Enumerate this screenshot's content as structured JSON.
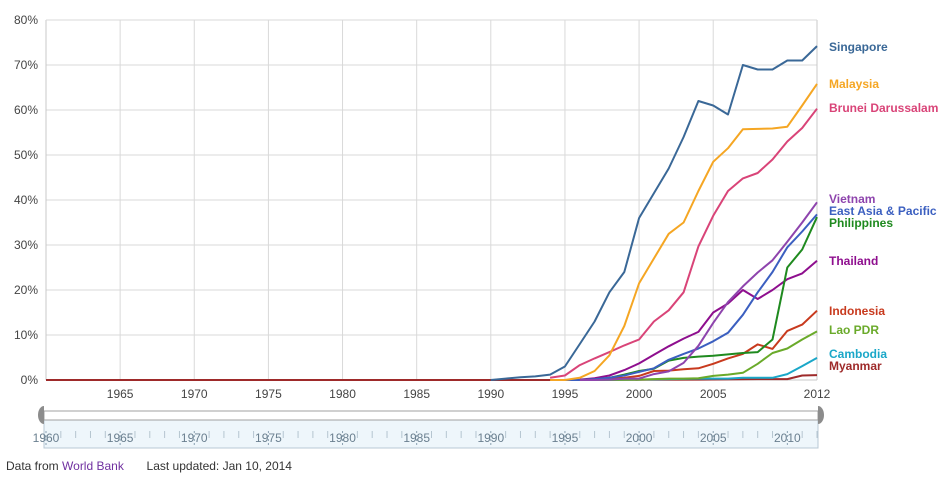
{
  "chart_data": {
    "type": "line",
    "title": "",
    "xlabel": "",
    "ylabel": "",
    "ylim": [
      0,
      80
    ],
    "xlim": [
      1960,
      2012
    ],
    "y_ticks": [
      "0%",
      "10%",
      "20%",
      "30%",
      "40%",
      "50%",
      "60%",
      "70%",
      "80%"
    ],
    "x_ticks": [
      "1965",
      "1970",
      "1975",
      "1980",
      "1985",
      "1990",
      "1995",
      "2000",
      "2005",
      "2012"
    ],
    "grid": true,
    "legend": "right, labels at line ends",
    "series": [
      {
        "name": "Singapore",
        "color": "#3a6897",
        "x": [
          1990,
          1991,
          1992,
          1993,
          1994,
          1995,
          1996,
          1997,
          1998,
          1999,
          2000,
          2001,
          2002,
          2003,
          2004,
          2005,
          2006,
          2007,
          2008,
          2009,
          2010,
          2011,
          2012
        ],
        "y": [
          0,
          0.3,
          0.6,
          0.8,
          1.2,
          3,
          8,
          13,
          19.5,
          24,
          36,
          41.5,
          47,
          54,
          62,
          61,
          59,
          70,
          69,
          69,
          71,
          71,
          74.2
        ]
      },
      {
        "name": "Malaysia",
        "color": "#f5a623",
        "x": [
          1994,
          1995,
          1996,
          1997,
          1998,
          1999,
          2000,
          2001,
          2002,
          2003,
          2004,
          2005,
          2006,
          2007,
          2008,
          2009,
          2010,
          2011,
          2012
        ],
        "y": [
          0,
          0,
          0.5,
          2,
          5.5,
          12,
          21.5,
          27,
          32.5,
          35,
          42,
          48.5,
          51.5,
          55.7,
          55.8,
          55.9,
          56.3,
          61,
          65.8
        ]
      },
      {
        "name": "Brunei Darussalam",
        "color": "#d94478",
        "x": [
          1994,
          1995,
          1996,
          1997,
          1998,
          1999,
          2000,
          2001,
          2002,
          2003,
          2004,
          2005,
          2006,
          2007,
          2008,
          2009,
          2010,
          2011,
          2012
        ],
        "y": [
          0.5,
          1,
          3.3,
          4.8,
          6.2,
          7.7,
          9,
          13,
          15.5,
          19.5,
          29.7,
          36.5,
          42,
          44.8,
          46,
          49,
          53,
          56,
          60.3
        ]
      },
      {
        "name": "Vietnam",
        "color": "#8e44ad",
        "x": [
          1996,
          1997,
          1998,
          1999,
          2000,
          2001,
          2002,
          2003,
          2004,
          2005,
          2006,
          2007,
          2008,
          2009,
          2010,
          2011,
          2012
        ],
        "y": [
          0,
          0,
          0.1,
          0.3,
          0.3,
          1.3,
          1.9,
          3.8,
          7.6,
          12.7,
          17.3,
          20.8,
          23.9,
          26.6,
          30.7,
          35,
          39.5
        ]
      },
      {
        "name": "East Asia & Pacific",
        "color": "#3b5fc0",
        "x": [
          1995,
          1996,
          1997,
          1998,
          1999,
          2000,
          2001,
          2002,
          2003,
          2004,
          2005,
          2006,
          2007,
          2008,
          2009,
          2010,
          2011,
          2012
        ],
        "y": [
          0,
          0,
          0.2,
          0.5,
          1,
          1.8,
          2.6,
          4.5,
          5.8,
          7,
          8.6,
          10.5,
          14.5,
          19.5,
          24,
          29.5,
          33,
          36.8
        ]
      },
      {
        "name": "Philippines",
        "color": "#1f8a1f",
        "x": [
          1996,
          1997,
          1998,
          1999,
          2000,
          2001,
          2002,
          2003,
          2004,
          2005,
          2006,
          2007,
          2008,
          2009,
          2010,
          2011,
          2012
        ],
        "y": [
          0,
          0.1,
          0.5,
          1.2,
          2,
          2.5,
          4.3,
          4.9,
          5.2,
          5.4,
          5.7,
          6,
          6.2,
          9,
          25,
          29,
          36.2
        ]
      },
      {
        "name": "Thailand",
        "color": "#8e0e8e",
        "x": [
          1995,
          1996,
          1997,
          1998,
          1999,
          2000,
          2001,
          2002,
          2003,
          2004,
          2005,
          2006,
          2007,
          2008,
          2009,
          2010,
          2011,
          2012
        ],
        "y": [
          0,
          0.1,
          0.4,
          1,
          2.2,
          3.7,
          5.6,
          7.5,
          9.2,
          10.7,
          15,
          17,
          20,
          18,
          20,
          22.4,
          23.7,
          26.5
        ]
      },
      {
        "name": "Indonesia",
        "color": "#c83a1e",
        "x": [
          1996,
          1997,
          1998,
          1999,
          2000,
          2001,
          2002,
          2003,
          2004,
          2005,
          2006,
          2007,
          2008,
          2009,
          2010,
          2011,
          2012
        ],
        "y": [
          0,
          0.1,
          0.3,
          0.5,
          0.9,
          2,
          2.1,
          2.4,
          2.6,
          3.6,
          4.8,
          5.8,
          7.9,
          6.9,
          10.9,
          12.3,
          15.4
        ]
      },
      {
        "name": "Lao PDR",
        "color": "#6aaa2a",
        "x": [
          1996,
          2000,
          2001,
          2002,
          2003,
          2004,
          2005,
          2006,
          2007,
          2008,
          2009,
          2010,
          2011,
          2012
        ],
        "y": [
          0,
          0.1,
          0.2,
          0.3,
          0.3,
          0.4,
          0.9,
          1.2,
          1.6,
          3.6,
          6,
          7,
          9,
          10.8
        ]
      },
      {
        "name": "Cambodia",
        "color": "#1aa7c8",
        "x": [
          1996,
          2000,
          2002,
          2004,
          2006,
          2007,
          2008,
          2009,
          2010,
          2011,
          2012
        ],
        "y": [
          0,
          0.1,
          0.2,
          0.3,
          0.3,
          0.5,
          0.5,
          0.5,
          1.3,
          3.1,
          4.9
        ]
      },
      {
        "name": "Myanmar",
        "color": "#9e2a2a",
        "x": [
          1960,
          1996,
          2000,
          2004,
          2008,
          2010,
          2011,
          2012
        ],
        "y": [
          0,
          0,
          0.05,
          0.1,
          0.2,
          0.2,
          1,
          1.1
        ]
      }
    ],
    "label_colors_note": ""
  },
  "timeline": {
    "labels": [
      "1960",
      "1965",
      "1970",
      "1975",
      "1980",
      "1985",
      "1990",
      "1995",
      "2000",
      "2005",
      "2010"
    ]
  },
  "footer": {
    "prefix": "Data from",
    "link": "World Bank",
    "updated": "Last updated: Jan 10, 2014"
  }
}
